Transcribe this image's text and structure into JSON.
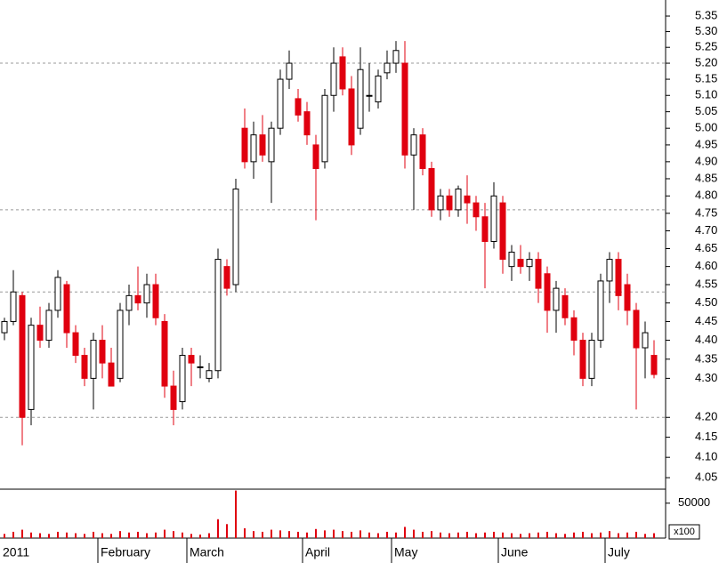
{
  "chart_data": {
    "type": "candlestick",
    "categories": [
      "2011",
      null,
      null,
      null,
      null,
      null,
      null,
      null,
      null,
      null,
      null,
      "February",
      null,
      null,
      null,
      null,
      null,
      null,
      null,
      null,
      null,
      "March",
      null,
      null,
      null,
      null,
      null,
      null,
      null,
      null,
      null,
      null,
      null,
      null,
      "April",
      null,
      null,
      null,
      null,
      null,
      null,
      null,
      null,
      null,
      "May",
      null,
      null,
      null,
      null,
      null,
      null,
      null,
      null,
      null,
      null,
      null,
      "June",
      null,
      null,
      null,
      null,
      null,
      null,
      null,
      null,
      null,
      null,
      null,
      "July",
      null,
      null,
      null,
      null,
      null
    ],
    "open": [
      4.42,
      4.45,
      4.52,
      4.22,
      4.44,
      4.4,
      4.48,
      4.55,
      4.42,
      4.36,
      4.3,
      4.4,
      4.34,
      4.3,
      4.48,
      4.52,
      4.5,
      4.55,
      4.45,
      4.28,
      4.24,
      4.36,
      4.33,
      4.3,
      4.32,
      4.6,
      4.55,
      5.0,
      4.9,
      4.98,
      4.9,
      5.0,
      5.15,
      5.09,
      5.05,
      4.95,
      4.9,
      5.1,
      5.22,
      5.12,
      5.0,
      5.1,
      5.08,
      5.17,
      5.2,
      5.2,
      4.92,
      4.98,
      4.88,
      4.76,
      4.8,
      4.76,
      4.8,
      4.78,
      4.74,
      4.67,
      4.78,
      4.6,
      4.62,
      4.6,
      4.62,
      4.58,
      4.48,
      4.52,
      4.46,
      4.4,
      4.3,
      4.4,
      4.56,
      4.62,
      4.55,
      4.48,
      4.38,
      4.36
    ],
    "high": [
      4.46,
      4.59,
      4.53,
      4.46,
      4.49,
      4.5,
      4.59,
      4.56,
      4.44,
      4.38,
      4.42,
      4.44,
      4.38,
      4.5,
      4.55,
      4.6,
      4.58,
      4.58,
      4.47,
      4.32,
      4.38,
      4.38,
      4.36,
      4.34,
      4.65,
      4.62,
      4.85,
      5.06,
      5.02,
      5.04,
      5.02,
      5.18,
      5.24,
      5.12,
      5.08,
      4.98,
      5.12,
      5.25,
      5.25,
      5.16,
      5.25,
      5.2,
      5.18,
      5.24,
      5.27,
      5.27,
      5.0,
      5.0,
      4.9,
      4.82,
      4.82,
      4.83,
      4.86,
      4.8,
      4.78,
      4.84,
      4.8,
      4.66,
      4.66,
      4.64,
      4.64,
      4.6,
      4.56,
      4.54,
      4.48,
      4.42,
      4.42,
      4.58,
      4.64,
      4.64,
      4.58,
      4.5,
      4.45,
      4.4
    ],
    "low": [
      4.4,
      4.44,
      4.13,
      4.18,
      4.38,
      4.38,
      4.46,
      4.38,
      4.34,
      4.28,
      4.22,
      4.3,
      4.28,
      4.29,
      4.44,
      4.48,
      4.46,
      4.44,
      4.25,
      4.18,
      4.22,
      4.28,
      4.3,
      4.29,
      4.3,
      4.52,
      4.53,
      4.88,
      4.85,
      4.9,
      4.78,
      4.98,
      5.12,
      5.02,
      4.95,
      4.73,
      4.88,
      5.05,
      5.1,
      4.92,
      4.98,
      5.05,
      5.06,
      5.15,
      5.17,
      4.88,
      4.76,
      4.86,
      4.74,
      4.73,
      4.74,
      4.74,
      4.72,
      4.7,
      4.54,
      4.65,
      4.58,
      4.56,
      4.58,
      4.56,
      4.5,
      4.42,
      4.42,
      4.44,
      4.36,
      4.28,
      4.28,
      4.38,
      4.5,
      4.48,
      4.44,
      4.22,
      4.3,
      4.3
    ],
    "close": [
      4.45,
      4.53,
      4.2,
      4.44,
      4.4,
      4.48,
      4.57,
      4.42,
      4.36,
      4.3,
      4.4,
      4.34,
      4.28,
      4.48,
      4.52,
      4.5,
      4.55,
      4.46,
      4.28,
      4.22,
      4.36,
      4.34,
      4.33,
      4.32,
      4.62,
      4.54,
      4.82,
      4.9,
      4.98,
      4.92,
      5.0,
      5.15,
      5.2,
      5.04,
      4.98,
      4.88,
      5.1,
      5.2,
      5.12,
      4.95,
      5.18,
      5.1,
      5.16,
      5.2,
      5.24,
      4.92,
      4.98,
      4.88,
      4.76,
      4.8,
      4.76,
      4.82,
      4.78,
      4.74,
      4.67,
      4.8,
      4.62,
      4.64,
      4.6,
      4.62,
      4.54,
      4.48,
      4.54,
      4.46,
      4.4,
      4.3,
      4.4,
      4.56,
      4.62,
      4.52,
      4.48,
      4.38,
      4.42,
      4.31
    ],
    "up_color": "#ffffff",
    "down_color": "#e0000f",
    "ylim": [
      4.022,
      5.402
    ],
    "log_scale": true,
    "yticks": [
      4.05,
      {
        "value": 4.1,
        "label": "4.10"
      },
      4.15,
      {
        "value": 4.2,
        "label": "4.20"
      },
      {
        "value": 4.3,
        "label": "4.30"
      },
      4.35,
      {
        "value": 4.4,
        "label": "4.40"
      },
      4.45,
      {
        "value": 4.5,
        "label": "4.50"
      },
      4.55,
      {
        "value": 4.6,
        "label": "4.60"
      },
      4.65,
      {
        "value": 4.7,
        "label": "4.70"
      },
      4.75,
      {
        "value": 4.8,
        "label": "4.80"
      },
      4.85,
      {
        "value": 4.9,
        "label": "4.90"
      },
      4.95,
      {
        "value": 5.0,
        "label": "5.00"
      },
      5.05,
      {
        "value": 5.1,
        "label": "5.10"
      },
      5.15,
      {
        "value": 5.2,
        "label": "5.20"
      },
      5.25,
      {
        "value": 5.3,
        "label": "5.30"
      },
      5.35
    ],
    "reference_lines": [
      5.2,
      4.76,
      4.53,
      4.2
    ],
    "volume": {
      "values": [
        6000,
        9000,
        12000,
        8000,
        7000,
        6000,
        9000,
        8000,
        7000,
        6000,
        9000,
        7000,
        6000,
        10000,
        8000,
        9000,
        7000,
        8000,
        12000,
        10000,
        8000,
        6000,
        5000,
        7000,
        27000,
        20000,
        68000,
        14000,
        10000,
        9000,
        12000,
        11000,
        10000,
        9000,
        8000,
        13000,
        11000,
        12000,
        10000,
        9000,
        11000,
        8000,
        7000,
        9000,
        8000,
        16000,
        12000,
        9000,
        10000,
        8000,
        7000,
        8000,
        9000,
        7000,
        8000,
        9000,
        8000,
        7000,
        6000,
        7000,
        8000,
        9000,
        7000,
        6000,
        8000,
        9000,
        7000,
        8000,
        10000,
        7000,
        8000,
        9000,
        6000,
        7000
      ],
      "color": "#e0000f",
      "ylim": [
        0,
        70000
      ],
      "yticks": [
        50000
      ],
      "unit_label": "x100"
    }
  }
}
